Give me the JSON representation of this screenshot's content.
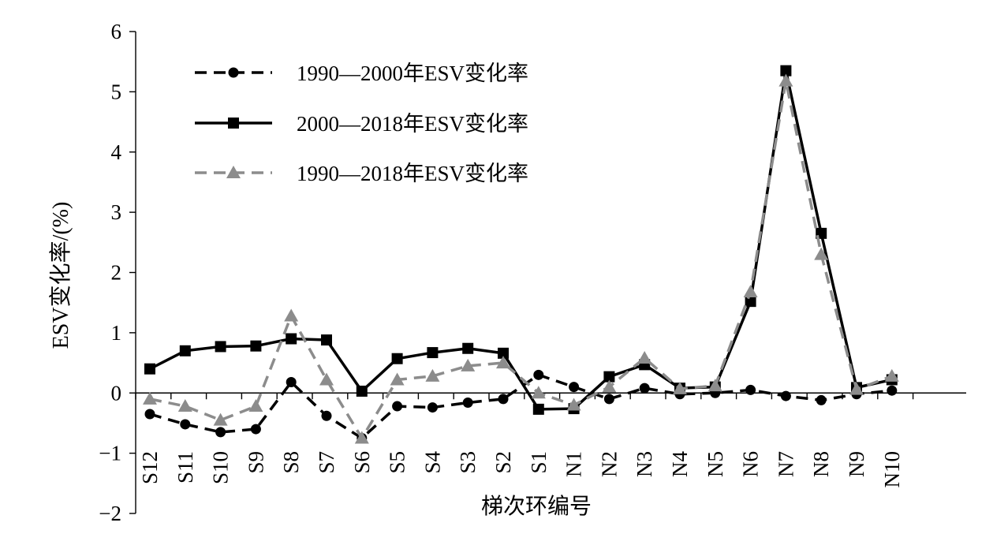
{
  "chart_data": {
    "type": "line",
    "title": "",
    "xlabel": "梯次环编号",
    "ylabel": "ESV变化率/(%)",
    "ylim": [
      -2,
      6
    ],
    "yticks": [
      6,
      5,
      4,
      3,
      2,
      1,
      0,
      -1,
      -2
    ],
    "ytick_labels": [
      "6",
      "5",
      "4",
      "3",
      "2",
      "1",
      "0",
      "−1",
      "−2"
    ],
    "grid": false,
    "legend_position": "top-left",
    "categories": [
      "S12",
      "S11",
      "S10",
      "S9",
      "S8",
      "S7",
      "S6",
      "S5",
      "S4",
      "S3",
      "S2",
      "S1",
      "N1",
      "N2",
      "N3",
      "N4",
      "N5",
      "N6",
      "N7",
      "N8",
      "N9",
      "N10"
    ],
    "series": [
      {
        "name": "1990—2000年ESV变化率",
        "style": "dashed",
        "marker": "circle",
        "color": "#000000",
        "values": [
          -0.35,
          -0.52,
          -0.65,
          -0.6,
          0.18,
          -0.38,
          -0.75,
          -0.22,
          -0.24,
          -0.16,
          -0.1,
          0.3,
          0.1,
          -0.1,
          0.08,
          -0.02,
          0.0,
          0.05,
          -0.05,
          -0.12,
          -0.02,
          0.04
        ]
      },
      {
        "name": "2000—2018年ESV变化率",
        "style": "solid",
        "marker": "square",
        "color": "#000000",
        "values": [
          0.4,
          0.7,
          0.77,
          0.78,
          0.9,
          0.88,
          0.03,
          0.57,
          0.67,
          0.74,
          0.66,
          -0.27,
          -0.26,
          0.27,
          0.47,
          0.08,
          0.1,
          1.52,
          5.35,
          2.65,
          0.09,
          0.22
        ]
      },
      {
        "name": "1990—2018年ESV变化率",
        "style": "dashed",
        "marker": "triangle",
        "color": "#8c8c8c",
        "values": [
          -0.1,
          -0.22,
          -0.45,
          -0.22,
          1.28,
          0.22,
          -0.75,
          0.22,
          0.28,
          0.45,
          0.5,
          0.0,
          -0.2,
          0.1,
          0.58,
          0.07,
          0.12,
          1.68,
          5.18,
          2.3,
          0.06,
          0.28
        ]
      }
    ]
  }
}
